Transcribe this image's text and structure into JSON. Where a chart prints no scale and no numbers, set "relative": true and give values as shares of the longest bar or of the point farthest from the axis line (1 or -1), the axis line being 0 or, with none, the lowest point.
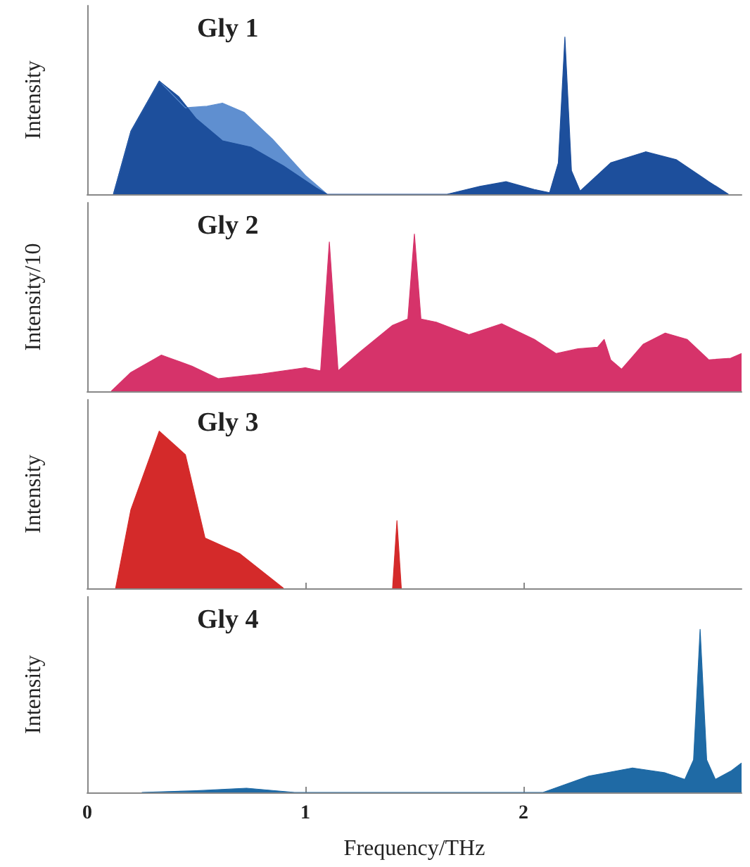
{
  "chart_data": [
    {
      "type": "area",
      "title": "Gly 1",
      "ylabel": "Intensity",
      "relative": true,
      "tick_labels": false,
      "xlim": [
        0,
        3
      ],
      "xticks": [
        0,
        1,
        2
      ],
      "series": [
        {
          "color": "#5f8fd0",
          "x": [
            0.12,
            0.2,
            0.33,
            0.45,
            0.55,
            0.62,
            0.72,
            0.85,
            1.0,
            1.1
          ],
          "values": [
            0,
            0.4,
            0.72,
            0.55,
            0.56,
            0.58,
            0.52,
            0.35,
            0.12,
            0
          ]
        },
        {
          "color": "#1d4f9c",
          "x": [
            0.12,
            0.2,
            0.33,
            0.42,
            0.5,
            0.62,
            0.75,
            0.9,
            1.05,
            1.1,
            1.65,
            1.8,
            1.92,
            2.05,
            2.12,
            2.16,
            2.19,
            2.22,
            2.26,
            2.4,
            2.56,
            2.7,
            2.85,
            2.94
          ],
          "values": [
            0,
            0.4,
            0.72,
            0.62,
            0.48,
            0.34,
            0.3,
            0.18,
            0.04,
            0,
            0,
            0.05,
            0.08,
            0.03,
            0.01,
            0.2,
            1,
            0.15,
            0.02,
            0.2,
            0.27,
            0.22,
            0.08,
            0
          ]
        }
      ]
    },
    {
      "type": "area",
      "title": "Gly 2",
      "ylabel": "Intensity/10",
      "relative": true,
      "tick_labels": false,
      "xlim": [
        0,
        3
      ],
      "xticks": [
        0,
        1,
        2
      ],
      "series": [
        {
          "color": "#d6336a",
          "x": [
            0.11,
            0.2,
            0.34,
            0.48,
            0.6,
            0.8,
            1.0,
            1.07,
            1.11,
            1.15,
            1.25,
            1.4,
            1.47,
            1.5,
            1.53,
            1.6,
            1.75,
            1.9,
            2.05,
            2.15,
            2.25,
            2.34,
            2.37,
            2.4,
            2.45,
            2.55,
            2.65,
            2.75,
            2.85,
            2.95,
            3.0
          ],
          "values": [
            0,
            0.12,
            0.23,
            0.16,
            0.08,
            0.11,
            0.15,
            0.13,
            0.95,
            0.13,
            0.25,
            0.42,
            0.46,
            1,
            0.46,
            0.44,
            0.36,
            0.43,
            0.33,
            0.24,
            0.27,
            0.28,
            0.33,
            0.2,
            0.14,
            0.3,
            0.37,
            0.33,
            0.2,
            0.21,
            0.24
          ]
        }
      ]
    },
    {
      "type": "area",
      "title": "Gly 3",
      "ylabel": "Intensity",
      "relative": true,
      "tick_labels": false,
      "xlim": [
        0,
        3
      ],
      "xticks": [
        0,
        1,
        2
      ],
      "series": [
        {
          "color": "#d42a2a",
          "x": [
            0.13,
            0.2,
            0.33,
            0.45,
            0.54,
            0.7,
            0.9,
            1.0,
            1.4,
            1.42,
            1.44
          ],
          "values": [
            0,
            0.5,
            1,
            0.85,
            0.32,
            0.22,
            0,
            null,
            0,
            0.43,
            0
          ]
        }
      ]
    },
    {
      "type": "area",
      "title": "Gly 4",
      "ylabel": "Intensity",
      "xlabel": "Frequency/THz",
      "relative": true,
      "tick_labels": "x",
      "xlim": [
        0,
        3
      ],
      "xticks": [
        0,
        1,
        2
      ],
      "series": [
        {
          "color": "#1f6aa5",
          "x": [
            0.25,
            0.5,
            0.73,
            0.95,
            2.09,
            2.3,
            2.5,
            2.65,
            2.74,
            2.78,
            2.81,
            2.84,
            2.88,
            2.95,
            3.0
          ],
          "values": [
            0,
            0.01,
            0.026,
            0,
            0,
            0.1,
            0.15,
            0.12,
            0.08,
            0.2,
            1,
            0.2,
            0.08,
            0.13,
            0.18
          ]
        }
      ]
    }
  ]
}
